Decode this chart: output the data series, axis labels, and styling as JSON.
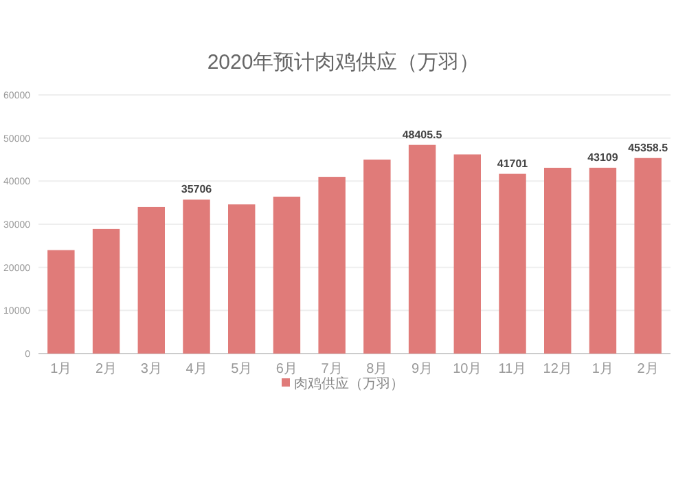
{
  "chart_data": {
    "type": "bar",
    "title": "2020年预计肉鸡供应（万羽）",
    "categories": [
      "1月",
      "2月",
      "3月",
      "4月",
      "5月",
      "6月",
      "7月",
      "8月",
      "9月",
      "10月",
      "11月",
      "12月",
      "1月",
      "2月"
    ],
    "series": [
      {
        "name": "肉鸡供应（万羽）",
        "color": "#e07b79",
        "values": [
          24000,
          28900,
          34000,
          35706,
          34600,
          36400,
          41000,
          45000,
          48405.5,
          46200,
          41701,
          43100,
          43109,
          45358.5
        ],
        "value_labels": [
          null,
          null,
          null,
          "35706",
          null,
          null,
          null,
          null,
          "48405.5",
          null,
          "41701",
          null,
          "43109",
          "45358.5"
        ]
      }
    ],
    "ylim": [
      0,
      60000
    ],
    "yticks": [
      0,
      10000,
      20000,
      30000,
      40000,
      50000,
      60000
    ],
    "grid": "y",
    "legend": "bottom"
  }
}
